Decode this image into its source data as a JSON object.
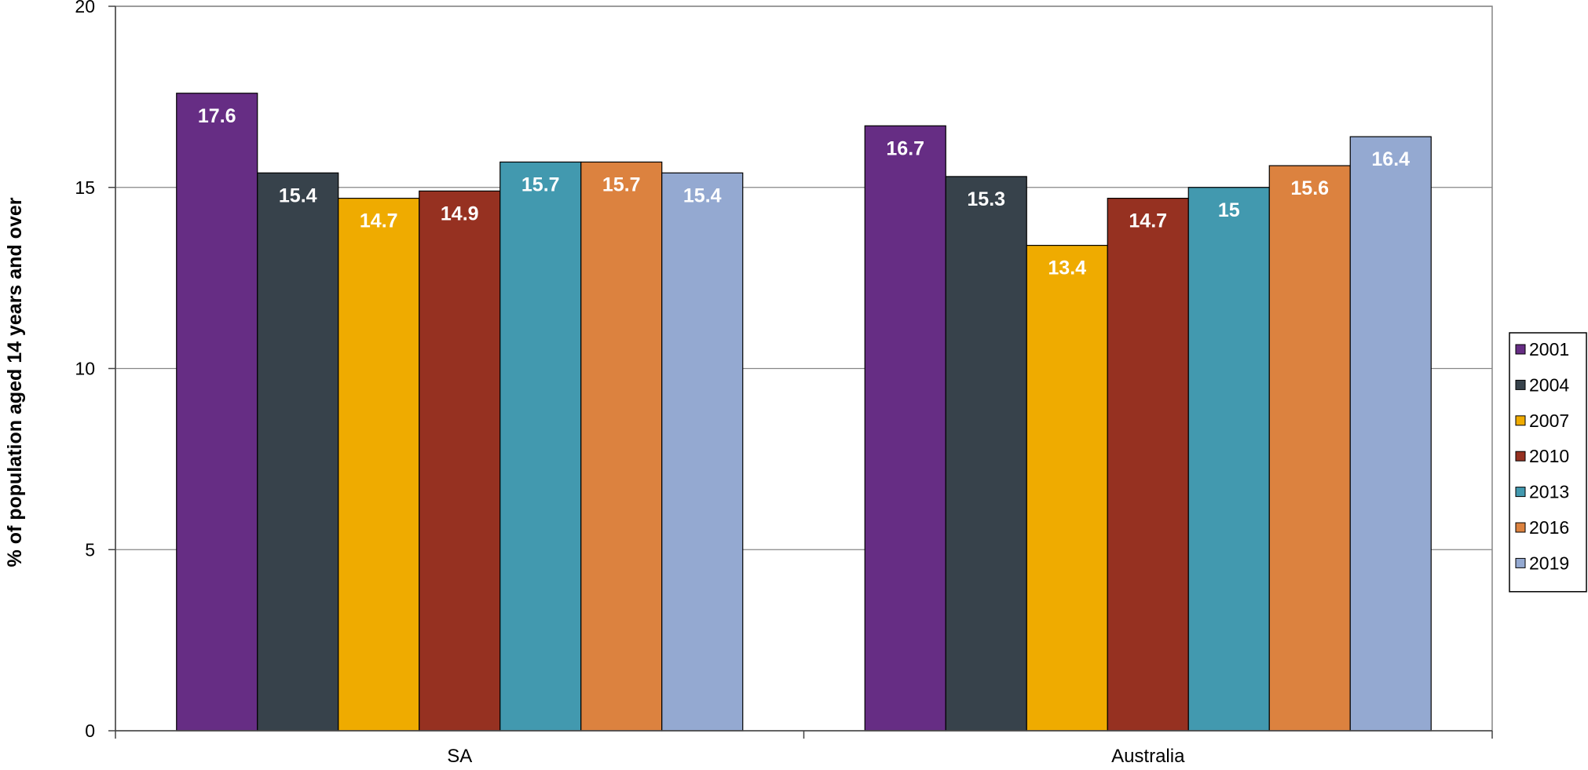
{
  "chart_data": {
    "type": "bar",
    "title": "",
    "xlabel": "",
    "ylabel": "% of population aged 14 years and over",
    "categories": [
      "SA",
      "Australia"
    ],
    "ylim": [
      0,
      20
    ],
    "yticks": [
      0,
      5,
      10,
      15,
      20
    ],
    "grid": true,
    "legend_position": "right",
    "series": [
      {
        "name": "2001",
        "values": [
          17.6,
          16.7
        ],
        "labels": [
          "17.6",
          "16.7"
        ],
        "color": "#662d84"
      },
      {
        "name": "2004",
        "values": [
          15.4,
          15.3
        ],
        "labels": [
          "15.4",
          "15.3"
        ],
        "color": "#37424b"
      },
      {
        "name": "2007",
        "values": [
          14.7,
          13.4
        ],
        "labels": [
          "14.7",
          "13.4"
        ],
        "color": "#efab00"
      },
      {
        "name": "2010",
        "values": [
          14.9,
          14.7
        ],
        "labels": [
          "14.9",
          "14.7"
        ],
        "color": "#963121"
      },
      {
        "name": "2013",
        "values": [
          15.7,
          15
        ],
        "labels": [
          "15.7",
          "15"
        ],
        "color": "#4299af"
      },
      {
        "name": "2016",
        "values": [
          15.7,
          15.6
        ],
        "labels": [
          "15.7",
          "15.6"
        ],
        "color": "#dc823f"
      },
      {
        "name": "2019",
        "values": [
          15.4,
          16.4
        ],
        "labels": [
          "15.4",
          "16.4"
        ],
        "color": "#94a9d1"
      }
    ]
  }
}
